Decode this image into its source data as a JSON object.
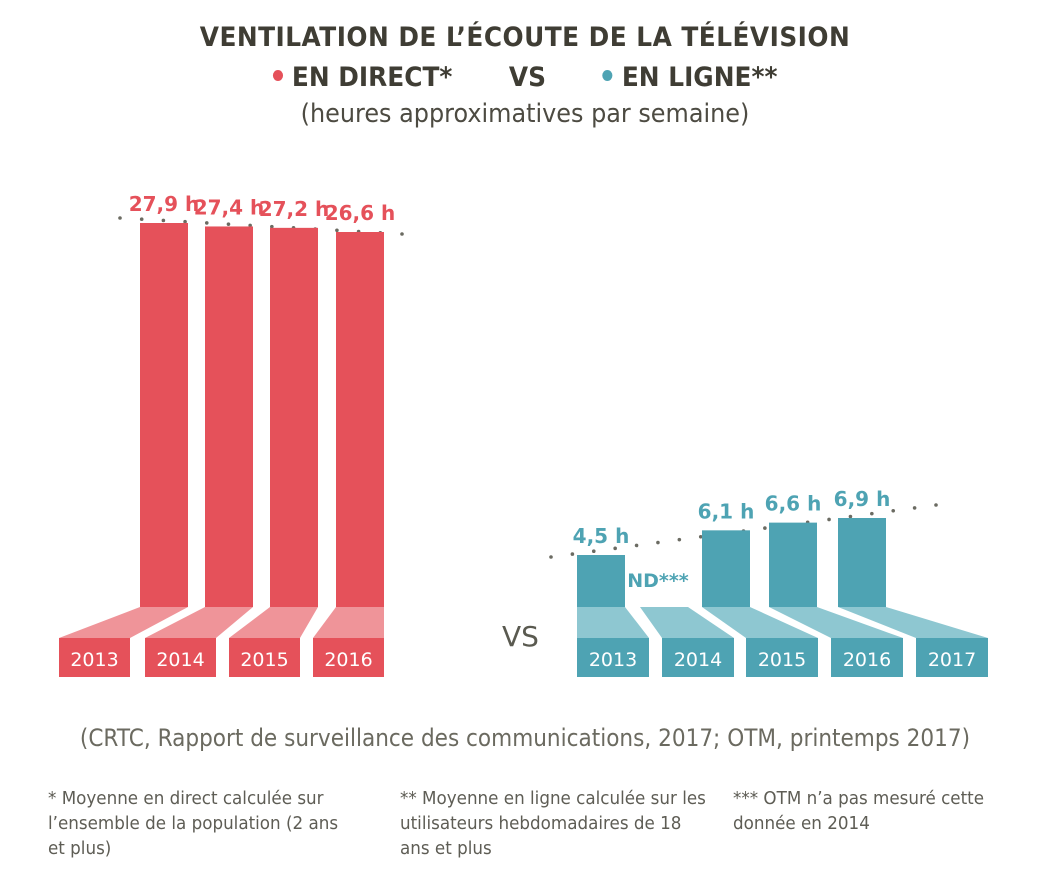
{
  "header": {
    "title": "VENTILATION DE L’ÉCOUTE DE LA TÉLÉVISION",
    "legend": [
      {
        "label": "EN DIRECT*",
        "color": "#e5515a"
      },
      {
        "label": "EN LIGNE**",
        "color": "#4ea3b3"
      }
    ],
    "vs_label": "VS",
    "subtitle": "(heures approximatives par semaine)"
  },
  "middle_vs": "VS",
  "source": "(CRTC, Rapport de surveillance des communications, 2017; OTM, printemps 2017)",
  "footnotes": [
    "* Moyenne en direct calculée sur l’ensemble de la population (2 ans et plus)",
    "** Moyenne en ligne calculée sur les utilisateurs hebdomadaires de 18 ans et plus",
    "*** OTM n’a pas mesuré cette donnée en 2014"
  ],
  "colors": {
    "direct": "#e5515a",
    "direct_light": "#ef9499",
    "online": "#4ea3b3",
    "online_light": "#8ec7d1",
    "dots": "#6b6b62"
  },
  "chart_data": [
    {
      "type": "bar",
      "title": "EN DIRECT*",
      "ylabel": "heures approximatives par semaine",
      "categories": [
        "2013",
        "2014",
        "2015",
        "2016"
      ],
      "values": [
        27.9,
        27.4,
        27.2,
        26.6
      ],
      "data_labels": [
        "27,9 h",
        "27,4 h",
        "27,2 h",
        "26,6 h"
      ],
      "color": "#e5515a",
      "trendline": "dotted",
      "ylim": [
        0,
        28
      ]
    },
    {
      "type": "bar",
      "title": "EN LIGNE**",
      "ylabel": "heures approximatives par semaine",
      "categories": [
        "2013",
        "2014",
        "2015",
        "2016",
        "2017"
      ],
      "values": [
        4.5,
        null,
        6.1,
        6.6,
        6.9
      ],
      "data_labels": [
        "4,5 h",
        "ND***",
        "6,1 h",
        "6,6 h",
        "6,9 h"
      ],
      "color": "#4ea3b3",
      "trendline": "dotted",
      "ylim": [
        0,
        28
      ]
    }
  ]
}
